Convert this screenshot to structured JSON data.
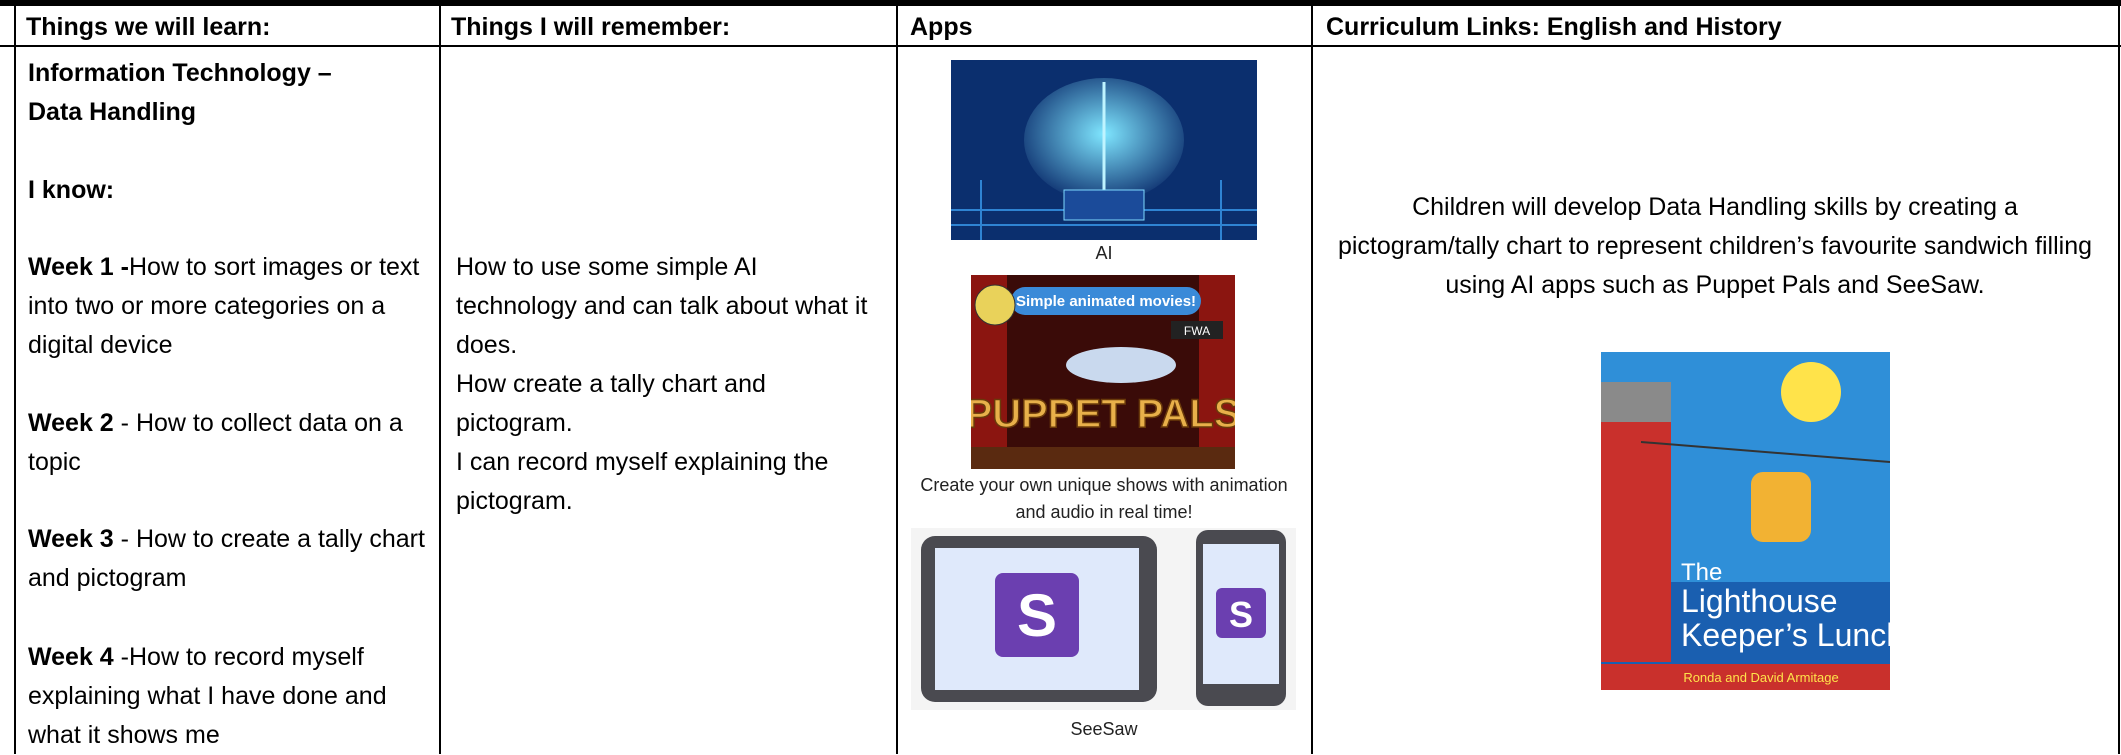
{
  "table": {
    "headers": [
      "Things we will learn:",
      "Things I will remember:",
      "Apps",
      "Curriculum Links: English and History"
    ],
    "learn": {
      "subject": "Information Technology – Data Handling",
      "intro": "I know:",
      "weeks": [
        {
          "label": "Week 1 -",
          "text": "How to sort images or text into two or more categories on a digital device"
        },
        {
          "label": "Week 2",
          "text": "- How to collect data on a topic"
        },
        {
          "label": "Week 3",
          "text": "- How to create a tally chart and pictogram"
        },
        {
          "label": "Week 4",
          "text": "-How to record myself explaining what I have done and what it shows me"
        }
      ]
    },
    "remember": [
      "How to use some simple AI technology and can talk about what it does.",
      "How create a tally chart and pictogram.",
      "I can record myself explaining the pictogram."
    ],
    "apps": [
      {
        "caption": "AI"
      },
      {
        "banner": "Simple animated movies!",
        "badge": "FWA",
        "logo": "PUPPET PALS",
        "caption": "Create your own unique shows with animation and audio in real time!"
      },
      {
        "caption": "SeeSaw"
      }
    ],
    "curriculum": {
      "text": "Children will develop Data Handling skills by creating a pictogram/tally chart to represent children’s favourite sandwich filling using AI apps such as Puppet Pals and SeeSaw.",
      "book": {
        "title_line1": "The",
        "title_line2": "Lighthouse",
        "title_line3": "Keeper’s Lunch",
        "authors": "Ronda and David Armitage"
      }
    }
  }
}
